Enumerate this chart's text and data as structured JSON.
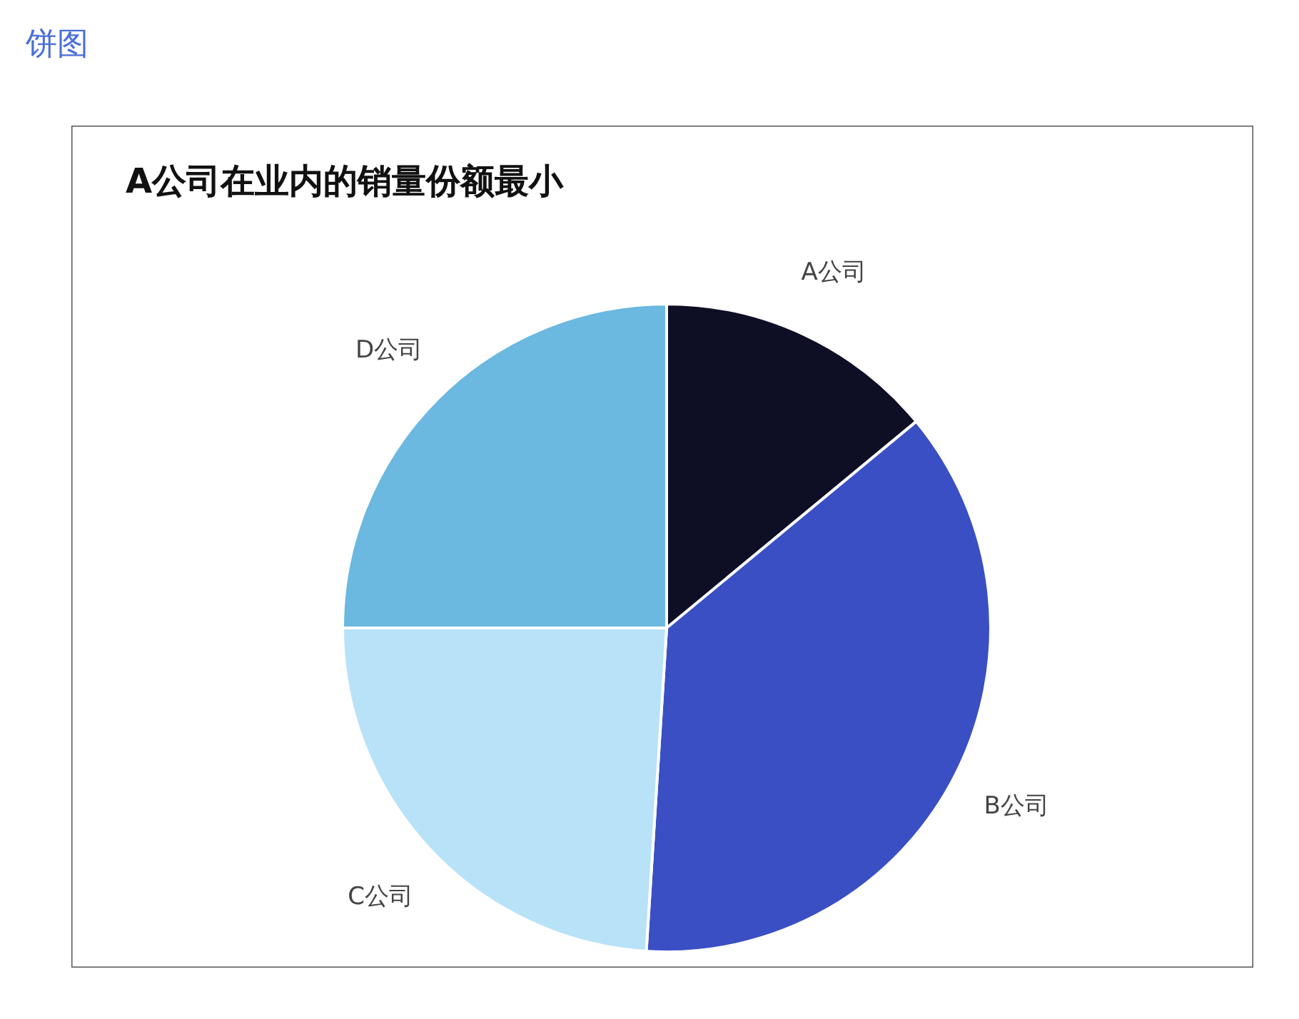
{
  "chart_data": {
    "type": "pie",
    "subtitle": "饼图",
    "title": "A公司在业内的销量份额最小",
    "categories": [
      "A公司",
      "B公司",
      "C公司",
      "D公司"
    ],
    "values": [
      14,
      37,
      24,
      25
    ],
    "colors": [
      "#0e0e25",
      "#3a4fc4",
      "#b8e2f8",
      "#6bb8e0"
    ],
    "legend": false
  }
}
